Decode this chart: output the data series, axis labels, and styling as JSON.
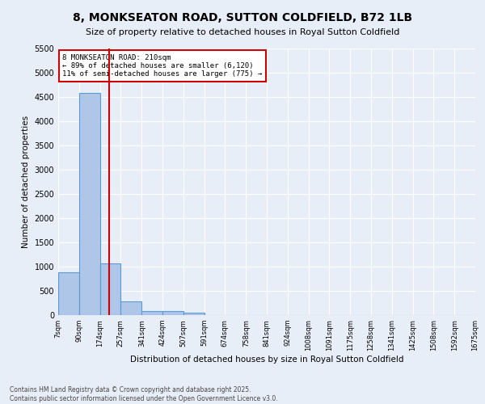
{
  "title": "8, MONKSEATON ROAD, SUTTON COLDFIELD, B72 1LB",
  "subtitle": "Size of property relative to detached houses in Royal Sutton Coldfield",
  "xlabel": "Distribution of detached houses by size in Royal Sutton Coldfield",
  "ylabel": "Number of detached properties",
  "footer_line1": "Contains HM Land Registry data © Crown copyright and database right 2025.",
  "footer_line2": "Contains public sector information licensed under the Open Government Licence v3.0.",
  "annotation_line1": "8 MONKSEATON ROAD: 210sqm",
  "annotation_line2": "← 89% of detached houses are smaller (6,120)",
  "annotation_line3": "11% of semi-detached houses are larger (775) →",
  "property_line_x": 210,
  "bar_edges": [
    7,
    90,
    174,
    257,
    341,
    424,
    507,
    591,
    674,
    758,
    841,
    924,
    1008,
    1091,
    1175,
    1258,
    1341,
    1425,
    1508,
    1592,
    1675
  ],
  "bar_heights": [
    880,
    4580,
    1070,
    290,
    90,
    80,
    50,
    0,
    0,
    0,
    0,
    0,
    0,
    0,
    0,
    0,
    0,
    0,
    0,
    0
  ],
  "bar_color": "#aec6e8",
  "bar_edge_color": "#5b9bd5",
  "vline_color": "#cc0000",
  "annotation_box_color": "#cc0000",
  "background_color": "#e8eef7",
  "grid_color": "#ffffff",
  "ylim": [
    0,
    5500
  ],
  "yticks": [
    0,
    500,
    1000,
    1500,
    2000,
    2500,
    3000,
    3500,
    4000,
    4500,
    5000,
    5500
  ]
}
